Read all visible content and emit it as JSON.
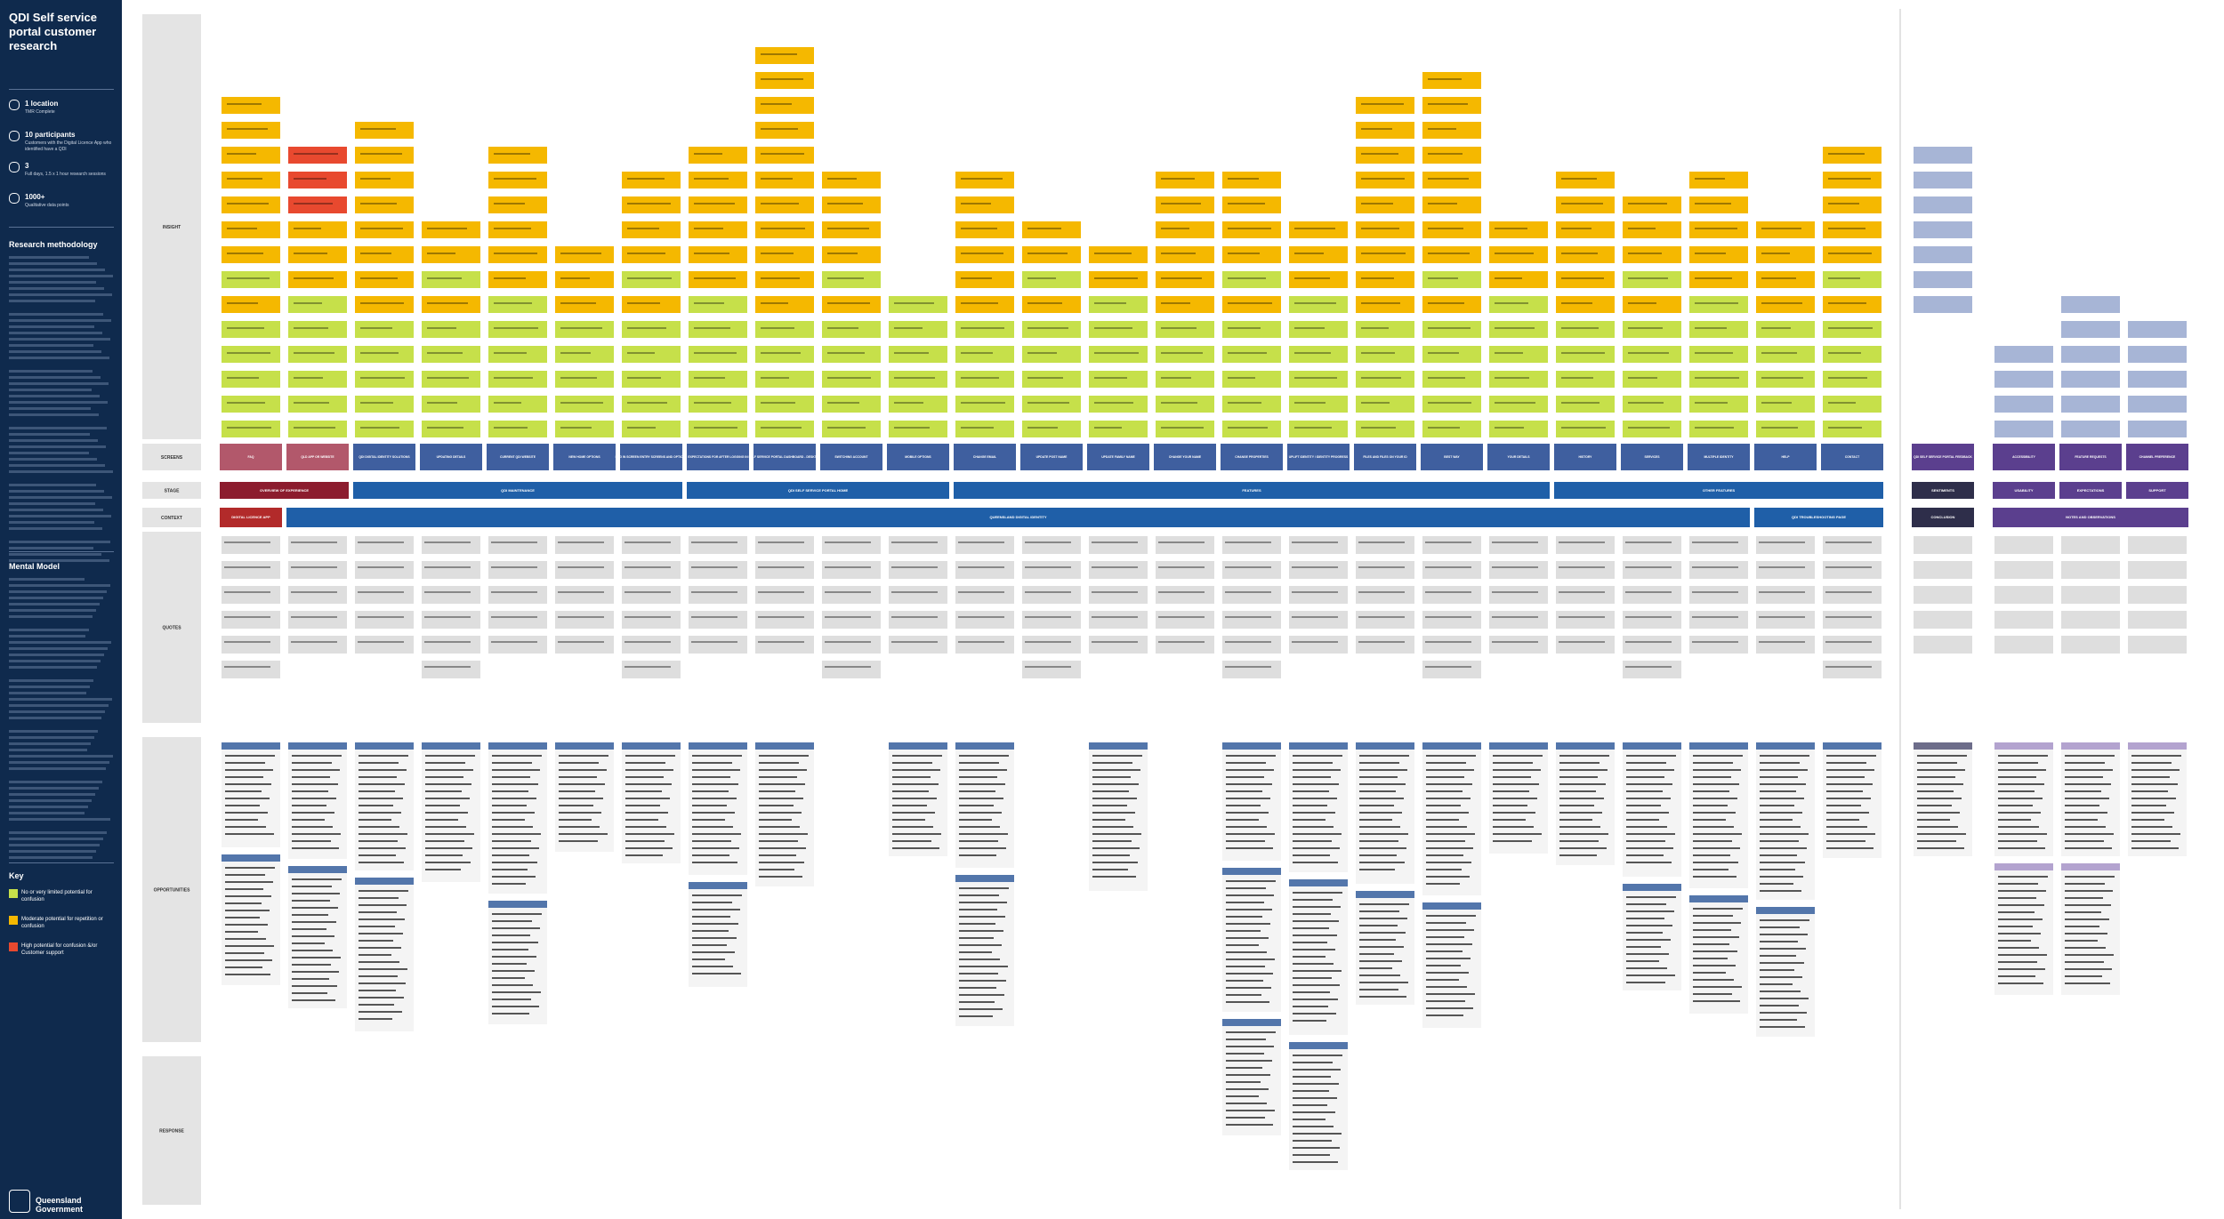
{
  "sidebar": {
    "title": "QDI Self service portal customer research",
    "stats": [
      {
        "value": "1 location",
        "detail": "TMR Complete"
      },
      {
        "value": "10 participants",
        "detail": "Customers with the Digital Licence App who identified have a QDI"
      },
      {
        "value": "3",
        "detail": "Full days, 1.5 x 1 hour research sessions"
      },
      {
        "value": "1000+",
        "detail": "Qualitative data points"
      }
    ],
    "methodology_heading": "Research methodology",
    "mental_model_heading": "Mental Model",
    "key_heading": "Key",
    "key": [
      {
        "label": "No or very limited potential for confusion",
        "color": "#c6e04a"
      },
      {
        "label": "Moderate potential for repetition or confusion",
        "color": "#f5b800"
      },
      {
        "label": "High potential for confusion &/or Customer support",
        "color": "#e8492f"
      }
    ],
    "logo": "Queensland Government"
  },
  "row_labels": [
    "INSIGHT",
    "SCREENS",
    "STAGE",
    "CONTEXT",
    "QUOTES",
    "OPPORTUNITIES",
    "RESPONSE"
  ],
  "screens": [
    "FAQ",
    "QLD APP OR WEBSITE",
    "QDI DIGITAL IDENTITY SOLUTIONS",
    "UPDATING DETAILS",
    "CURRENT QDI WEBSITE",
    "NEW HOME OPTIONS",
    "LOG IN SCREEN ENTRY SCREENS AND OPTIONS",
    "EXPECTATIONS FOR AFTER LOGGING IN",
    "SELF SERVICE PORTAL DASHBOARD - DESKTOP",
    "SWITCHING ACCOUNT",
    "MOBILE OPTIONS",
    "CHANGE EMAIL",
    "UPDATE POST NAME",
    "UPDATE FAMILY NAME",
    "CHANGE YOUR NAME",
    "CHANGE PROPERTIES",
    "UPLIFT IDENTITY / IDENTITY PROGRESS",
    "FILES AND FILES ON YOUR ID",
    "BEST WAY",
    "YOUR DETAILS",
    "HISTORY",
    "SERVICES",
    "MULTIPLE IDENTITY",
    "HELP",
    "CONTACT"
  ],
  "side_screens": [
    "QDI SELF SERVICE PORTAL FEEDBACK",
    "ACCESSIBILITY",
    "FEATURE REQUESTS",
    "CHANNEL PREFERENCE"
  ],
  "stages": [
    "OVERVIEW OF EXPERIENCE",
    "QDI MAINTENANCE",
    "QDI SELF SERVICE PORTAL HOME",
    "FEATURES",
    "OTHER FEATURES"
  ],
  "side_stages": [
    "SENTIMENTS",
    "USABILITY",
    "EXPECTATIONS",
    "SUPPORT"
  ],
  "contexts": [
    "DIGITAL LICENCE APP",
    "QUEENSLAND DIGITAL IDENTITY",
    "QDI TROUBLESHOOTING PAGE"
  ],
  "side_contexts": [
    "CONCLUSION",
    "NOTES AND OBSERVATIONS"
  ]
}
